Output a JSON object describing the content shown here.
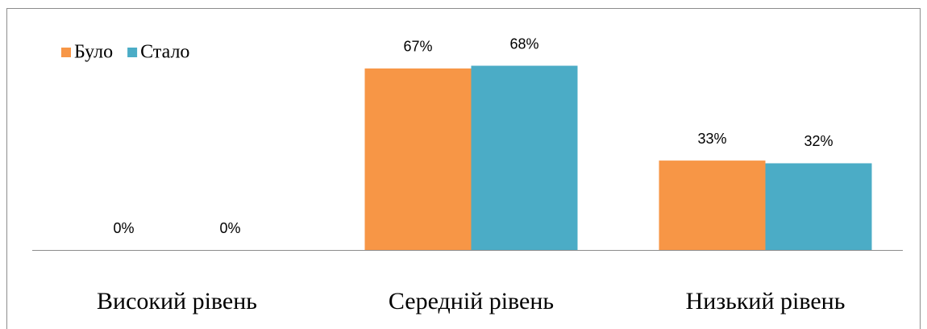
{
  "chart_data": {
    "type": "bar",
    "categories": [
      "Високий рівень",
      "Середній рівень",
      "Низький рівень"
    ],
    "series": [
      {
        "name": "Було",
        "color": "#f79646",
        "values": [
          0,
          67,
          33
        ],
        "value_labels": [
          "0%",
          "67%",
          "33%"
        ]
      },
      {
        "name": "Стало",
        "color": "#4bacc6",
        "values": [
          0,
          68,
          32
        ],
        "value_labels": [
          "0%",
          "68%",
          "32%"
        ]
      }
    ],
    "legend": "top-left"
  }
}
